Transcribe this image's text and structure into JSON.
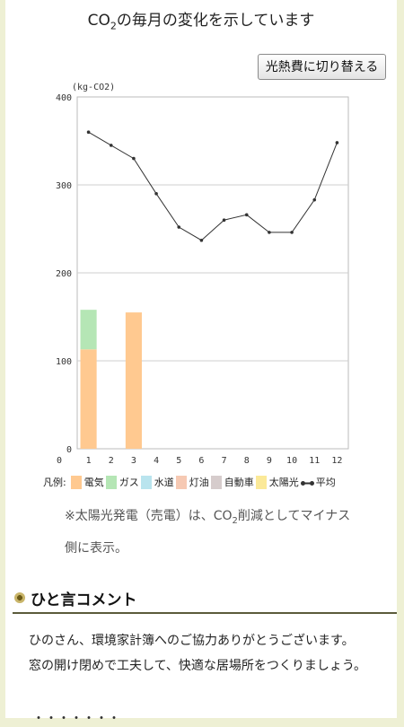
{
  "title": {
    "pre": "CO",
    "sub": "2",
    "post": "の毎月の変化を示しています"
  },
  "switch_button": "光熱費に切り替える",
  "chart_data": {
    "type": "bar",
    "unit_label": "(kg-CO2)",
    "categories": [
      "1",
      "2",
      "3",
      "4",
      "5",
      "6",
      "7",
      "8",
      "9",
      "10",
      "11",
      "12"
    ],
    "ylim": [
      0,
      400
    ],
    "yticks": [
      0,
      100,
      200,
      300,
      400
    ],
    "grid": true,
    "series": [
      {
        "name": "電気",
        "color": "#ffc990",
        "values": [
          113,
          0,
          155,
          0,
          0,
          0,
          0,
          0,
          0,
          0,
          0,
          0
        ]
      },
      {
        "name": "ガス",
        "color": "#b5e6b5",
        "values": [
          45,
          0,
          0,
          0,
          0,
          0,
          0,
          0,
          0,
          0,
          0,
          0
        ]
      },
      {
        "name": "水道",
        "color": "#b9e4ee",
        "values": [
          0,
          0,
          0,
          0,
          0,
          0,
          0,
          0,
          0,
          0,
          0,
          0
        ]
      },
      {
        "name": "灯油",
        "color": "#f6c9b3",
        "values": [
          0,
          0,
          0,
          0,
          0,
          0,
          0,
          0,
          0,
          0,
          0,
          0
        ]
      },
      {
        "name": "自動車",
        "color": "#d6cccc",
        "values": [
          0,
          0,
          0,
          0,
          0,
          0,
          0,
          0,
          0,
          0,
          0,
          0
        ]
      },
      {
        "name": "太陽光",
        "color": "#fbe998",
        "values": [
          0,
          0,
          0,
          0,
          0,
          0,
          0,
          0,
          0,
          0,
          0,
          0
        ]
      }
    ],
    "average": {
      "name": "平均",
      "color": "#333333",
      "values": [
        360,
        345,
        330,
        290,
        252,
        237,
        260,
        266,
        246,
        246,
        283,
        348
      ]
    }
  },
  "legend_lead": "凡例:",
  "note": {
    "pre": "※太陽光発電（売電）は、CO",
    "sub": "2",
    "post": "削減としてマイナス側に表示。"
  },
  "section_title": "ひと言コメント",
  "comment": [
    "ひのさん、環境家計簿へのご協力ありがとうございます。",
    "窓の開け閉めで工夫して、快適な居場所をつくりましょう。"
  ],
  "partial_text": "・・・・・・・"
}
